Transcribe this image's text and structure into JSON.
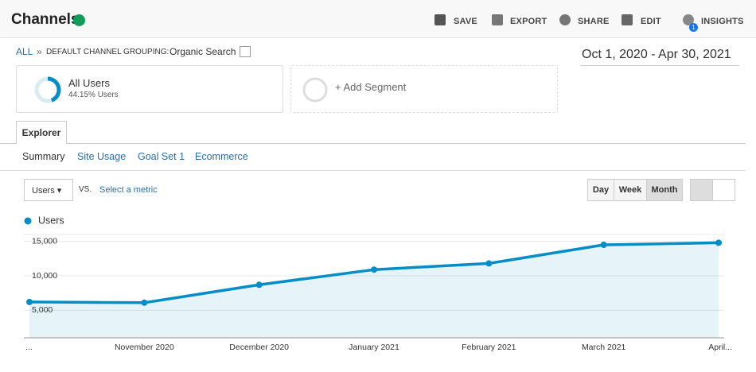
{
  "header": {
    "title": "Channels",
    "actions": [
      "SAVE",
      "EXPORT",
      "SHARE",
      "EDIT",
      "INSIGHTS"
    ],
    "insights_badge": "1"
  },
  "breadcrumb": {
    "all": "ALL",
    "separator": "»",
    "grouping": "DEFAULT CHANNEL GROUPING:",
    "value": "Organic Search"
  },
  "date_range": "Oct 1, 2020 - Apr 30, 2021",
  "segments": [
    {
      "name": "All Users",
      "detail": "44.15% Users"
    },
    {
      "name": "+ Add Segment"
    }
  ],
  "tab": "Explorer",
  "subtabs": [
    "Summary",
    "Site Usage",
    "Goal Set 1",
    "Ecommerce"
  ],
  "metric": {
    "selected": "Users",
    "vs": "VS.",
    "select": "Select a metric"
  },
  "granularity": [
    "Day",
    "Week",
    "Month"
  ],
  "chart_data": {
    "type": "line",
    "categories": [
      "...",
      "November 2020",
      "December 2020",
      "January 2021",
      "February 2021",
      "March 2021",
      "April..."
    ],
    "series": [
      {
        "name": "Users",
        "color": "#058dc7",
        "values": [
          6200,
          6100,
          8700,
          10900,
          11800,
          14500,
          14800
        ]
      }
    ],
    "ylim": [
      1000,
      16000
    ],
    "yticks": [
      {
        "value": 5000,
        "label": "5,000"
      },
      {
        "value": 10000,
        "label": "10,000"
      },
      {
        "value": 15000,
        "label": "15,000"
      }
    ],
    "grid": true
  }
}
